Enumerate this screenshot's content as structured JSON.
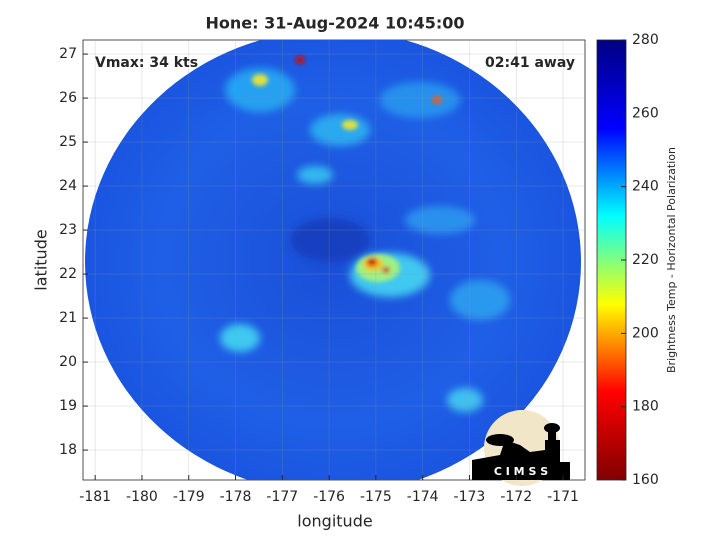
{
  "title": "Hone: 31-Aug-2024 10:45:00",
  "xlabel": "longitude",
  "ylabel": "latitude",
  "xlim": [
    -181.26,
    -170.53
  ],
  "ylim": [
    17.32,
    27.32
  ],
  "xticks": [
    -181,
    -180,
    -179,
    -178,
    -177,
    -176,
    -175,
    -174,
    -173,
    -172,
    -171
  ],
  "yticks": [
    18,
    19,
    20,
    21,
    22,
    23,
    24,
    25,
    26,
    27
  ],
  "grid": true,
  "annotations": {
    "vmax": "Vmax: 34 kts",
    "away": "02:41 away"
  },
  "colorbar": {
    "label": "Brightness Temp - Horizontal Polarization",
    "lim": [
      160,
      280
    ],
    "ticks": [
      160,
      180,
      200,
      220,
      240,
      260,
      280
    ],
    "colormap": "jet",
    "reverse": true
  },
  "logo": {
    "text": "C I M S S"
  }
}
